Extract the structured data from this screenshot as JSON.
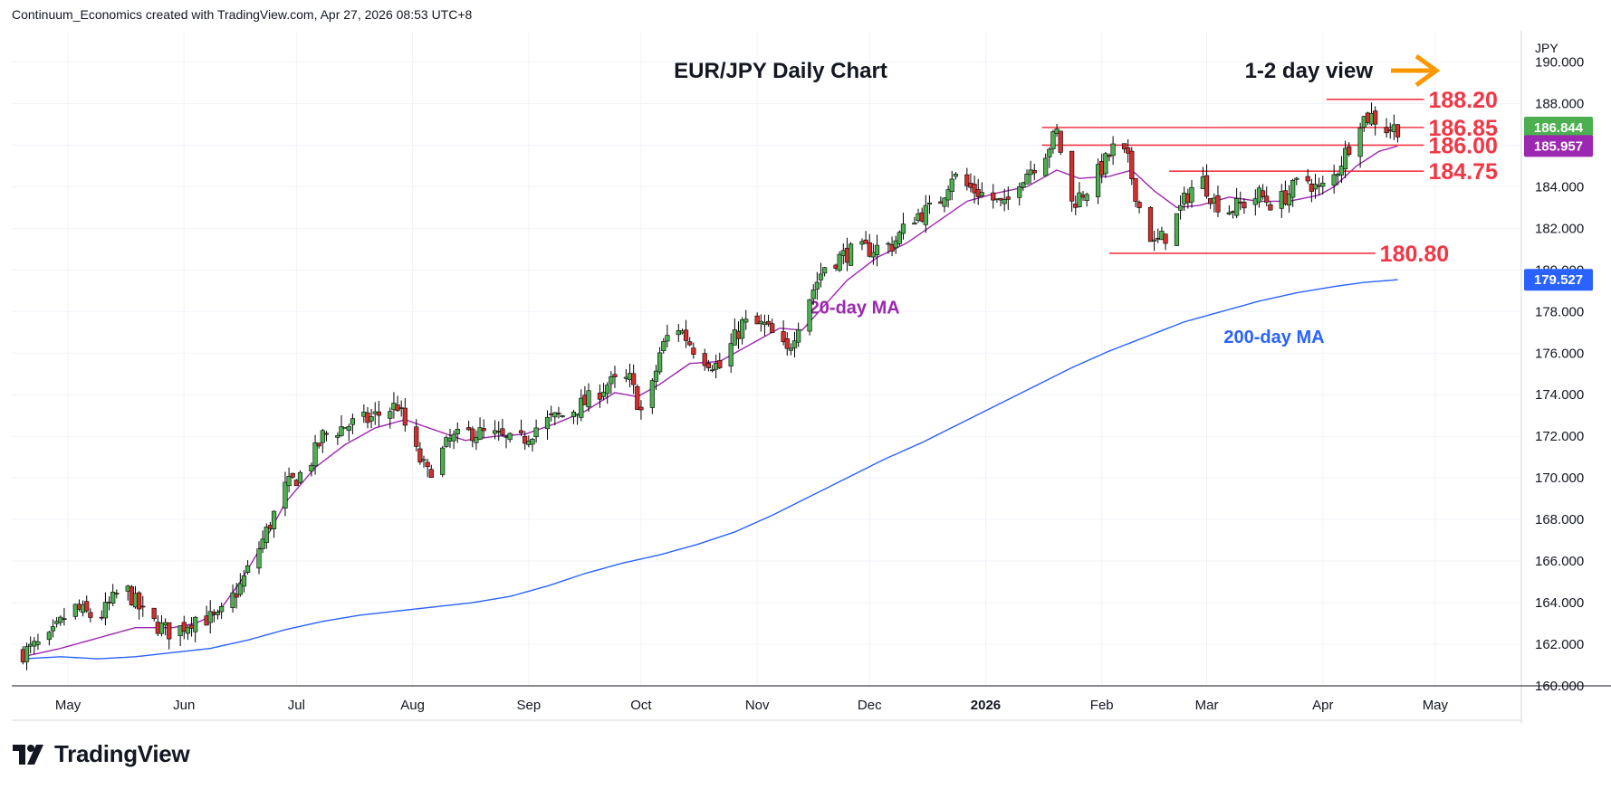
{
  "header": {
    "attribution": "Continuum_Economics created with TradingView.com, Apr 27, 2026 08:53 UTC+8"
  },
  "branding": {
    "name": "TradingView"
  },
  "colors": {
    "up": "#4caf50",
    "down": "#d32f2f",
    "wick": "#000000",
    "ma20": "#9c27b0",
    "ma200": "#2962ff",
    "level": "#f23645",
    "arrow": "#ff9800",
    "grid": "#f0f3fa"
  },
  "chart_data": {
    "type": "candlestick",
    "title": "EUR/JPY Daily Chart",
    "annotation": "1-2 day view",
    "currency": "JPY",
    "ylim": [
      160,
      191.5
    ],
    "y_ticks": [
      "160.000",
      "162.000",
      "164.000",
      "166.000",
      "168.000",
      "170.000",
      "172.000",
      "174.000",
      "176.000",
      "178.000",
      "180.000",
      "182.000",
      "184.000",
      "186.000",
      "188.000",
      "190.000"
    ],
    "x_ticks": [
      {
        "label": "May",
        "day": 12
      },
      {
        "label": "Jun",
        "day": 43
      },
      {
        "label": "Jul",
        "day": 73
      },
      {
        "label": "Aug",
        "day": 104
      },
      {
        "label": "Sep",
        "day": 135
      },
      {
        "label": "Oct",
        "day": 165
      },
      {
        "label": "Nov",
        "day": 196
      },
      {
        "label": "Dec",
        "day": 226
      },
      {
        "label": "2026",
        "day": 257,
        "bold": true
      },
      {
        "label": "Feb",
        "day": 288
      },
      {
        "label": "Mar",
        "day": 316
      },
      {
        "label": "Apr",
        "day": 347
      },
      {
        "label": "May",
        "day": 377
      }
    ],
    "x_range": [
      -3,
      400
    ],
    "price_labels": [
      {
        "text": "186.844",
        "value": 186.844,
        "color": "#4caf50"
      },
      {
        "text": "185.957",
        "value": 185.957,
        "color": "#9c27b0"
      },
      {
        "text": "179.527",
        "value": 179.527,
        "color": "#2962ff"
      }
    ],
    "levels": [
      {
        "label": "188.20",
        "value": 188.2,
        "start_day": 348,
        "end_day": 374
      },
      {
        "label": "186.85",
        "value": 186.85,
        "start_day": 272,
        "end_day": 374
      },
      {
        "label": "186.00",
        "value": 186.0,
        "start_day": 272,
        "end_day": 374
      },
      {
        "label": "184.75",
        "value": 184.75,
        "start_day": 306,
        "end_day": 374
      },
      {
        "label": "180.80",
        "value": 180.8,
        "start_day": 290,
        "end_day": 361
      }
    ],
    "ma_labels": [
      {
        "text": "20-day MA",
        "series": "ma20",
        "day": 222,
        "value": 177.9
      },
      {
        "text": "200-day MA",
        "series": "ma200",
        "day": 334,
        "value": 176.5
      }
    ],
    "close_anchors": [
      [
        0,
        161.6
      ],
      [
        7,
        162.2
      ],
      [
        13,
        163.8
      ],
      [
        20,
        163.2
      ],
      [
        27,
        164.8
      ],
      [
        33,
        163.2
      ],
      [
        40,
        162.5
      ],
      [
        46,
        163.3
      ],
      [
        52,
        163.2
      ],
      [
        58,
        164.8
      ],
      [
        64,
        167.0
      ],
      [
        70,
        169.5
      ],
      [
        76,
        170.5
      ],
      [
        80,
        172.0
      ],
      [
        86,
        172.5
      ],
      [
        92,
        172.8
      ],
      [
        100,
        173.5
      ],
      [
        104,
        171.5
      ],
      [
        108,
        170.2
      ],
      [
        114,
        171.8
      ],
      [
        120,
        172.2
      ],
      [
        126,
        172.0
      ],
      [
        132,
        171.6
      ],
      [
        138,
        172.6
      ],
      [
        144,
        173.0
      ],
      [
        150,
        173.6
      ],
      [
        156,
        174.5
      ],
      [
        162,
        174.7
      ],
      [
        166,
        172.7
      ],
      [
        170,
        176.0
      ],
      [
        174,
        177.5
      ],
      [
        180,
        176.0
      ],
      [
        186,
        175.3
      ],
      [
        192,
        177.4
      ],
      [
        198,
        177.3
      ],
      [
        204,
        176.0
      ],
      [
        208,
        178.0
      ],
      [
        214,
        180.2
      ],
      [
        220,
        180.8
      ],
      [
        226,
        181.0
      ],
      [
        232,
        181.2
      ],
      [
        238,
        182.6
      ],
      [
        244,
        183.0
      ],
      [
        248,
        184.6
      ],
      [
        252,
        184.0
      ],
      [
        258,
        183.5
      ],
      [
        262,
        183.0
      ],
      [
        266,
        184.4
      ],
      [
        272,
        185.4
      ],
      [
        276,
        186.6
      ],
      [
        280,
        183.2
      ],
      [
        284,
        183.9
      ],
      [
        288,
        184.9
      ],
      [
        292,
        186.1
      ],
      [
        295,
        185.2
      ],
      [
        298,
        183.0
      ],
      [
        302,
        181.2
      ],
      [
        306,
        181.8
      ],
      [
        310,
        183.3
      ],
      [
        314,
        184.6
      ],
      [
        318,
        183.3
      ],
      [
        322,
        182.9
      ],
      [
        326,
        183.2
      ],
      [
        330,
        183.6
      ],
      [
        334,
        183.1
      ],
      [
        338,
        183.7
      ],
      [
        342,
        184.5
      ],
      [
        346,
        183.8
      ],
      [
        350,
        184.5
      ],
      [
        354,
        186.0
      ],
      [
        356,
        187.2
      ],
      [
        360,
        187.4
      ],
      [
        364,
        186.8
      ],
      [
        367,
        186.84
      ]
    ],
    "ma20_anchors": [
      [
        0,
        161.4
      ],
      [
        10,
        161.8
      ],
      [
        20,
        162.3
      ],
      [
        30,
        162.8
      ],
      [
        40,
        162.8
      ],
      [
        46,
        163.0
      ],
      [
        52,
        163.5
      ],
      [
        58,
        165.0
      ],
      [
        64,
        166.8
      ],
      [
        70,
        168.8
      ],
      [
        78,
        170.5
      ],
      [
        86,
        171.6
      ],
      [
        94,
        172.4
      ],
      [
        102,
        172.8
      ],
      [
        110,
        172.3
      ],
      [
        118,
        171.8
      ],
      [
        126,
        172.0
      ],
      [
        134,
        172.1
      ],
      [
        142,
        172.6
      ],
      [
        150,
        173.2
      ],
      [
        158,
        174.1
      ],
      [
        164,
        173.9
      ],
      [
        170,
        174.5
      ],
      [
        178,
        175.5
      ],
      [
        186,
        175.6
      ],
      [
        194,
        176.4
      ],
      [
        202,
        177.2
      ],
      [
        208,
        177.1
      ],
      [
        214,
        178.3
      ],
      [
        220,
        179.5
      ],
      [
        228,
        180.6
      ],
      [
        236,
        181.3
      ],
      [
        244,
        182.3
      ],
      [
        252,
        183.3
      ],
      [
        260,
        183.7
      ],
      [
        268,
        184.0
      ],
      [
        276,
        184.8
      ],
      [
        282,
        184.4
      ],
      [
        290,
        184.5
      ],
      [
        296,
        184.8
      ],
      [
        302,
        183.8
      ],
      [
        308,
        183.0
      ],
      [
        314,
        183.1
      ],
      [
        322,
        183.5
      ],
      [
        330,
        183.3
      ],
      [
        338,
        183.3
      ],
      [
        346,
        183.6
      ],
      [
        350,
        184.0
      ],
      [
        356,
        185.0
      ],
      [
        362,
        185.7
      ],
      [
        367,
        185.96
      ]
    ],
    "ma200_anchors": [
      [
        0,
        161.3
      ],
      [
        10,
        161.4
      ],
      [
        20,
        161.3
      ],
      [
        30,
        161.4
      ],
      [
        40,
        161.6
      ],
      [
        50,
        161.8
      ],
      [
        60,
        162.2
      ],
      [
        70,
        162.7
      ],
      [
        80,
        163.1
      ],
      [
        90,
        163.4
      ],
      [
        100,
        163.6
      ],
      [
        110,
        163.8
      ],
      [
        120,
        164.0
      ],
      [
        130,
        164.3
      ],
      [
        140,
        164.8
      ],
      [
        150,
        165.4
      ],
      [
        160,
        165.9
      ],
      [
        170,
        166.3
      ],
      [
        180,
        166.8
      ],
      [
        190,
        167.4
      ],
      [
        200,
        168.2
      ],
      [
        210,
        169.1
      ],
      [
        220,
        170.0
      ],
      [
        230,
        170.9
      ],
      [
        240,
        171.7
      ],
      [
        250,
        172.6
      ],
      [
        260,
        173.5
      ],
      [
        270,
        174.4
      ],
      [
        280,
        175.3
      ],
      [
        290,
        176.1
      ],
      [
        300,
        176.8
      ],
      [
        310,
        177.5
      ],
      [
        320,
        178.0
      ],
      [
        330,
        178.5
      ],
      [
        340,
        178.9
      ],
      [
        350,
        179.2
      ],
      [
        358,
        179.4
      ],
      [
        367,
        179.53
      ]
    ]
  }
}
